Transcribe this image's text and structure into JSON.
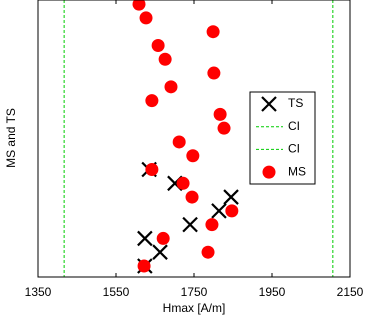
{
  "chart_data": {
    "type": "scatter",
    "xlabel": "Hmax [A/m]",
    "ylabel": "MS and TS",
    "xlim": [
      1350,
      2150
    ],
    "xticks": [
      1350,
      1550,
      1750,
      1950,
      2150
    ],
    "ylim": [
      0.2,
      20.3
    ],
    "series": [
      {
        "name": "TS",
        "marker": "x",
        "color": "#000000",
        "x": [
          1624,
          1663,
          1624,
          1740,
          1814,
          1845,
          1701,
          1635
        ],
        "y": [
          1,
          2,
          3,
          4,
          5,
          6,
          7,
          8
        ]
      },
      {
        "name": "CI",
        "marker": "vline",
        "color": "#00cc00",
        "x": [
          1417
        ]
      },
      {
        "name": "CI",
        "marker": "vline",
        "color": "#00cc00",
        "x": [
          2106
        ]
      },
      {
        "name": "MS",
        "marker": "o",
        "color": "#ff0000",
        "x": [
          1622,
          1786,
          1671,
          1796,
          1847,
          1745,
          1722,
          1642,
          1747,
          1712,
          1827,
          1817,
          1642,
          1691,
          1801,
          1676,
          1658,
          1799,
          1627,
          1609
        ],
        "y": [
          1,
          2,
          3,
          4,
          5,
          6,
          7,
          8,
          9,
          10,
          11,
          12,
          13,
          14,
          15,
          16,
          17,
          18,
          19,
          20
        ]
      }
    ]
  }
}
